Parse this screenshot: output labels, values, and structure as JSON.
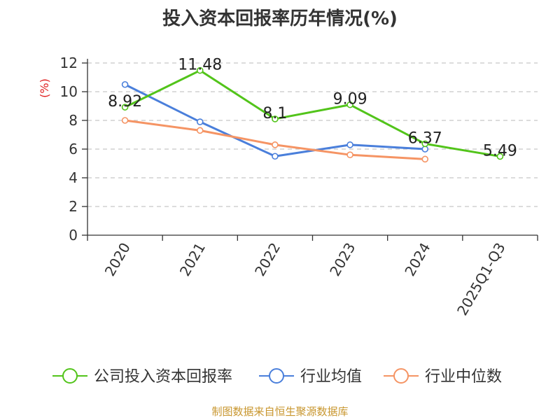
{
  "chart_data": {
    "type": "line",
    "title": "投入资本回报率历年情况(%)",
    "ylabel": "(%)",
    "xlabel": "",
    "categories": [
      "2020",
      "2021",
      "2022",
      "2023",
      "2024",
      "2025Q1-Q3"
    ],
    "yticks": [
      "0",
      "2",
      "4",
      "6",
      "8",
      "10",
      "12"
    ],
    "ylim": [
      0,
      12
    ],
    "grid": true,
    "legend_position": "bottom",
    "series": [
      {
        "name": "公司投入资本回报率",
        "color": "#52c41a",
        "values": [
          8.92,
          11.48,
          8.1,
          9.09,
          6.37,
          5.49
        ],
        "labels": [
          "8.92",
          "11.48",
          "8.1",
          "9.09",
          "6.37",
          "5.49"
        ]
      },
      {
        "name": "行业均值",
        "color": "#4a7fdb",
        "values": [
          10.5,
          7.9,
          5.5,
          6.3,
          6.0,
          null
        ]
      },
      {
        "name": "行业中位数",
        "color": "#f59464",
        "values": [
          8.0,
          7.3,
          6.3,
          5.6,
          5.3,
          null
        ]
      }
    ]
  },
  "footer": {
    "source": "制图数据来自恒生聚源数据库",
    "source_color": "#c8962e"
  },
  "colors": {
    "axis": "#333333",
    "grid": "#c8c8c8",
    "ylabel": "#e02020"
  }
}
